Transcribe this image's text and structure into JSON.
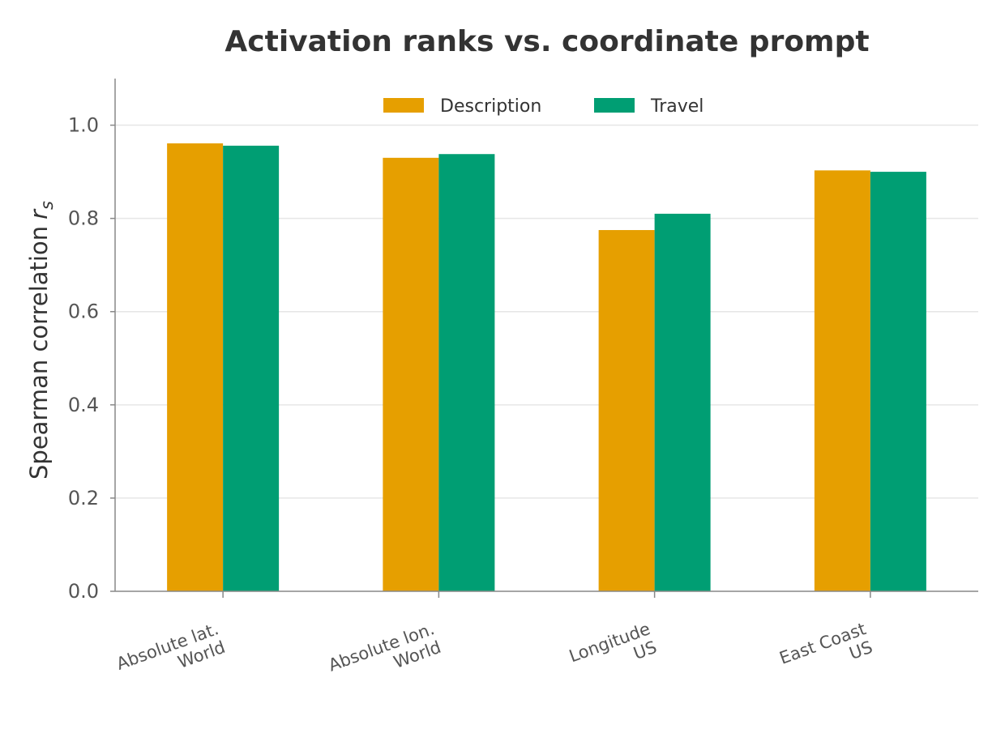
{
  "chart_data": {
    "type": "bar",
    "title": "Activation ranks vs. coordinate prompt",
    "xlabel": "",
    "ylabel": "Spearman correlation",
    "ylabel_symbol": "r",
    "ylabel_subscript": "s",
    "categories": [
      [
        "Absolute lat.",
        "World"
      ],
      [
        "Absolute lon.",
        "World"
      ],
      [
        "Longitude",
        "US"
      ],
      [
        "East Coast",
        "US"
      ]
    ],
    "series": [
      {
        "name": "Description",
        "color": "#E69F00",
        "values": [
          0.961,
          0.93,
          0.775,
          0.903
        ]
      },
      {
        "name": "Travel",
        "color": "#009E73",
        "values": [
          0.956,
          0.938,
          0.81,
          0.9
        ]
      }
    ],
    "yticks": [
      "0.0",
      "0.2",
      "0.4",
      "0.6",
      "0.8",
      "1.0"
    ],
    "ylim": [
      0,
      1.1
    ],
    "grid": "horizontal",
    "legend": "top-center"
  }
}
